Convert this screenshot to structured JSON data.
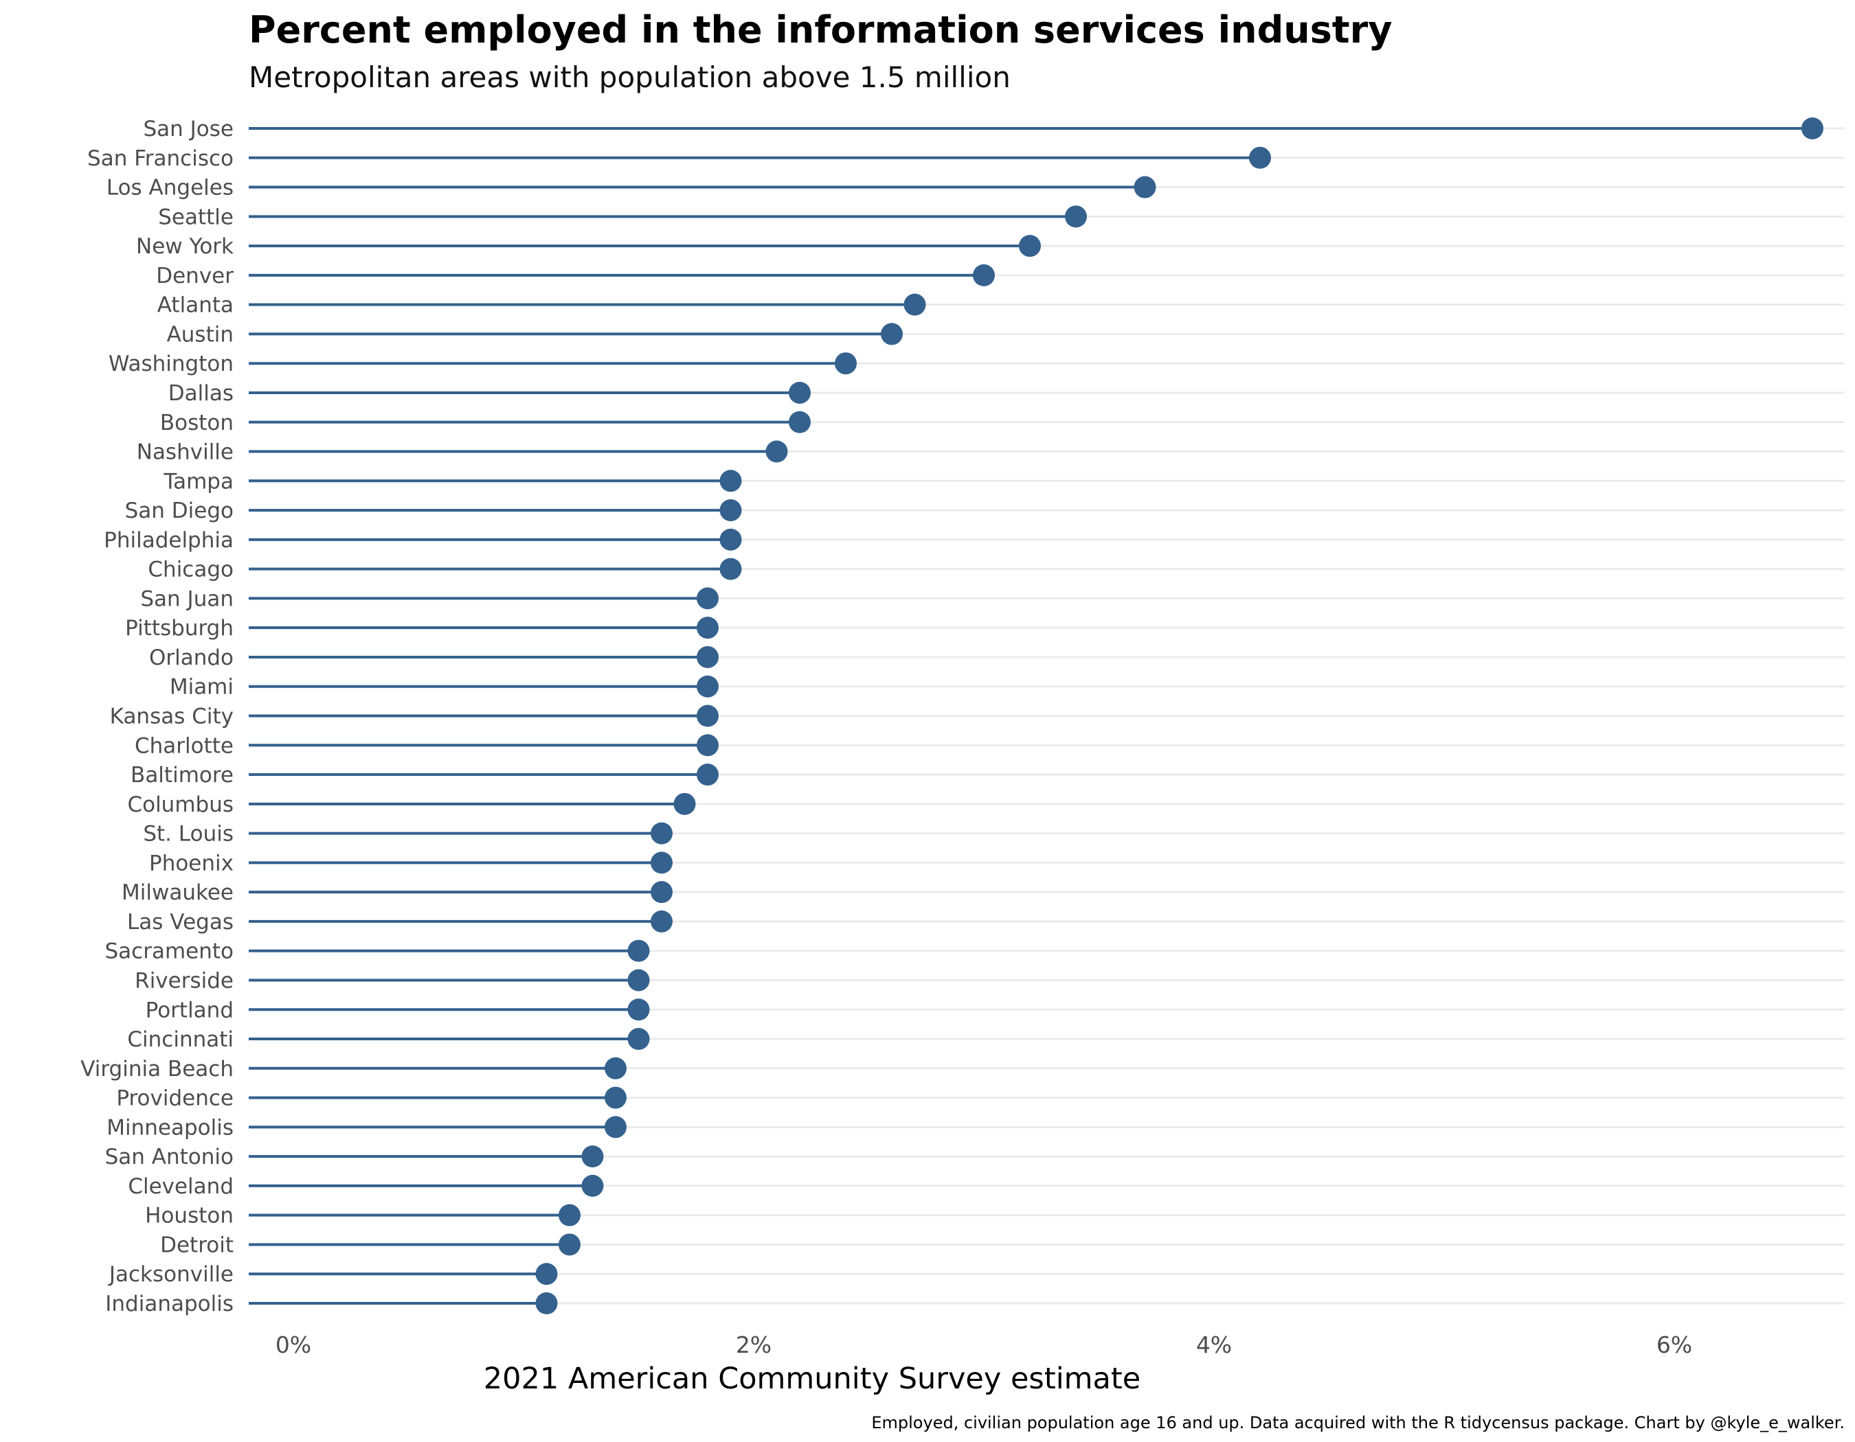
{
  "chart_data": {
    "type": "lollipop",
    "title": "Percent employed in the information services industry",
    "subtitle": "Metropolitan areas with population above 1.5 million",
    "xlabel": "2021 American Community Survey estimate",
    "caption": "Employed, civilian population age 16 and up. Data acquired with the R tidycensus package. Chart by @kyle_e_walker.",
    "xlim": [
      0,
      6.6
    ],
    "xticks": [
      0,
      2,
      4,
      6
    ],
    "xtick_labels": [
      "0%",
      "2%",
      "4%",
      "6%"
    ],
    "color": "#34618d",
    "grid": true,
    "categories": [
      "San Jose",
      "San Francisco",
      "Los Angeles",
      "Seattle",
      "New York",
      "Denver",
      "Atlanta",
      "Austin",
      "Washington",
      "Dallas",
      "Boston",
      "Nashville",
      "Tampa",
      "San Diego",
      "Philadelphia",
      "Chicago",
      "San Juan",
      "Pittsburgh",
      "Orlando",
      "Miami",
      "Kansas City",
      "Charlotte",
      "Baltimore",
      "Columbus",
      "St. Louis",
      "Phoenix",
      "Milwaukee",
      "Las Vegas",
      "Sacramento",
      "Riverside",
      "Portland",
      "Cincinnati",
      "Virginia Beach",
      "Providence",
      "Minneapolis",
      "San Antonio",
      "Cleveland",
      "Houston",
      "Detroit",
      "Jacksonville",
      "Indianapolis"
    ],
    "values": [
      6.6,
      4.2,
      3.7,
      3.4,
      3.2,
      3.0,
      2.7,
      2.6,
      2.4,
      2.2,
      2.2,
      2.1,
      1.9,
      1.9,
      1.9,
      1.9,
      1.8,
      1.8,
      1.8,
      1.8,
      1.8,
      1.8,
      1.8,
      1.7,
      1.6,
      1.6,
      1.6,
      1.6,
      1.5,
      1.5,
      1.5,
      1.5,
      1.4,
      1.4,
      1.4,
      1.3,
      1.3,
      1.2,
      1.2,
      1.1,
      1.1
    ]
  }
}
